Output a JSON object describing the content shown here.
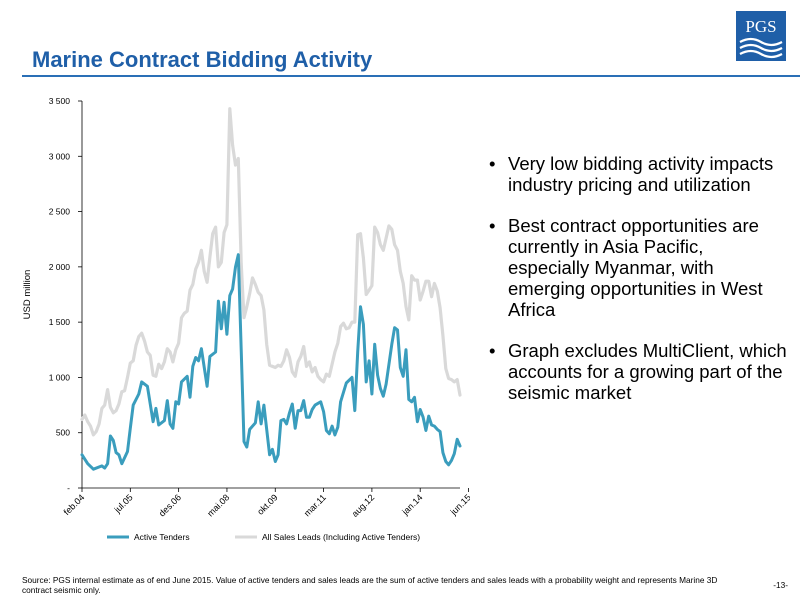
{
  "slide": {
    "title": "Marine Contract Bidding Activity",
    "accent_color": "#1f5fa8",
    "logo_text": "PGS",
    "bullets": [
      "Very low bidding activity impacts industry pricing and utilization",
      "Best contract opportunities are currently in Asia Pacific, especially Myanmar, with emerging opportunities in West Africa",
      "Graph excludes MultiClient, which accounts for a growing part of the seismic market"
    ],
    "footnote": "Source: PGS internal estimate as of end June 2015. Value of active tenders and sales leads are the sum of active tenders and sales leads with a probability weight and represents Marine 3D contract seismic only.",
    "page_number": "-13-"
  },
  "chart_data": {
    "type": "line",
    "title": "",
    "xlabel": "",
    "ylabel": "USD million",
    "ylim": [
      0,
      3500
    ],
    "yticks": [
      {
        "v": 0,
        "label": "-"
      },
      {
        "v": 500,
        "label": "500"
      },
      {
        "v": 1000,
        "label": "1 000"
      },
      {
        "v": 1500,
        "label": "1 500"
      },
      {
        "v": 2000,
        "label": "2 000"
      },
      {
        "v": 2500,
        "label": "2 500"
      },
      {
        "v": 3000,
        "label": "3 000"
      },
      {
        "v": 3500,
        "label": "3 500"
      }
    ],
    "x_start": "feb.04",
    "x_end": "jun.15",
    "x_tick_labels": [
      {
        "label": "feb.04",
        "index": 0
      },
      {
        "label": "jul.05",
        "index": 17
      },
      {
        "label": "des.06",
        "index": 34
      },
      {
        "label": "mai.08",
        "index": 51
      },
      {
        "label": "okt.09",
        "index": 68
      },
      {
        "label": "mar.11",
        "index": 85
      },
      {
        "label": "aug.12",
        "index": 102
      },
      {
        "label": "jan.14",
        "index": 119
      },
      {
        "label": "jun.15",
        "index": 136
      }
    ],
    "grid": false,
    "legend_position": "bottom",
    "series": [
      {
        "name": "Active Tenders",
        "color": "#3a9dbd",
        "points": [
          [
            0,
            300
          ],
          [
            2,
            220
          ],
          [
            4,
            170
          ],
          [
            7,
            200
          ],
          [
            8,
            180
          ],
          [
            9,
            220
          ],
          [
            10,
            470
          ],
          [
            11,
            430
          ],
          [
            12,
            320
          ],
          [
            13,
            300
          ],
          [
            14,
            220
          ],
          [
            16,
            330
          ],
          [
            17,
            540
          ],
          [
            18,
            750
          ],
          [
            20,
            850
          ],
          [
            21,
            960
          ],
          [
            23,
            920
          ],
          [
            25,
            600
          ],
          [
            26,
            720
          ],
          [
            27,
            570
          ],
          [
            29,
            610
          ],
          [
            30,
            790
          ],
          [
            31,
            580
          ],
          [
            32,
            540
          ],
          [
            33,
            780
          ],
          [
            34,
            760
          ],
          [
            35,
            960
          ],
          [
            37,
            1010
          ],
          [
            38,
            820
          ],
          [
            39,
            1100
          ],
          [
            40,
            1180
          ],
          [
            41,
            1150
          ],
          [
            42,
            1260
          ],
          [
            44,
            920
          ],
          [
            45,
            1190
          ],
          [
            47,
            1230
          ],
          [
            48,
            1690
          ],
          [
            49,
            1440
          ],
          [
            50,
            1680
          ],
          [
            51,
            1390
          ],
          [
            52,
            1740
          ],
          [
            53,
            1800
          ],
          [
            54,
            2000
          ],
          [
            55,
            2110
          ],
          [
            56,
            1250
          ],
          [
            57,
            420
          ],
          [
            58,
            370
          ],
          [
            59,
            530
          ],
          [
            61,
            590
          ],
          [
            62,
            780
          ],
          [
            63,
            580
          ],
          [
            64,
            750
          ],
          [
            65,
            530
          ],
          [
            66,
            300
          ],
          [
            67,
            350
          ],
          [
            68,
            240
          ],
          [
            69,
            300
          ],
          [
            70,
            610
          ],
          [
            71,
            620
          ],
          [
            72,
            580
          ],
          [
            73,
            680
          ],
          [
            74,
            760
          ],
          [
            75,
            540
          ],
          [
            76,
            700
          ],
          [
            77,
            700
          ],
          [
            78,
            790
          ],
          [
            79,
            640
          ],
          [
            80,
            640
          ],
          [
            81,
            710
          ],
          [
            82,
            750
          ],
          [
            84,
            780
          ],
          [
            85,
            690
          ],
          [
            86,
            520
          ],
          [
            87,
            490
          ],
          [
            88,
            560
          ],
          [
            89,
            480
          ],
          [
            90,
            550
          ],
          [
            91,
            780
          ],
          [
            93,
            950
          ],
          [
            95,
            1000
          ],
          [
            96,
            700
          ],
          [
            97,
            1230
          ],
          [
            98,
            1640
          ],
          [
            99,
            1480
          ],
          [
            100,
            960
          ],
          [
            101,
            1150
          ],
          [
            102,
            850
          ],
          [
            103,
            1300
          ],
          [
            104,
            1020
          ],
          [
            105,
            900
          ],
          [
            106,
            830
          ],
          [
            107,
            940
          ],
          [
            109,
            1300
          ],
          [
            110,
            1450
          ],
          [
            111,
            1430
          ],
          [
            112,
            1090
          ],
          [
            113,
            1010
          ],
          [
            114,
            1250
          ],
          [
            115,
            800
          ],
          [
            116,
            780
          ],
          [
            117,
            820
          ],
          [
            118,
            600
          ],
          [
            119,
            710
          ],
          [
            120,
            640
          ],
          [
            121,
            520
          ],
          [
            122,
            650
          ],
          [
            123,
            570
          ],
          [
            124,
            560
          ],
          [
            125,
            530
          ],
          [
            126,
            510
          ],
          [
            127,
            320
          ],
          [
            128,
            240
          ],
          [
            129,
            210
          ],
          [
            130,
            250
          ],
          [
            131,
            310
          ],
          [
            132,
            440
          ],
          [
            133,
            380
          ]
        ]
      },
      {
        "name": "All Sales Leads (Including Active Tenders)",
        "color": "#d9d9d9",
        "points": [
          [
            0,
            620
          ],
          [
            1,
            660
          ],
          [
            2,
            600
          ],
          [
            3,
            560
          ],
          [
            4,
            480
          ],
          [
            5,
            510
          ],
          [
            6,
            580
          ],
          [
            7,
            720
          ],
          [
            8,
            750
          ],
          [
            9,
            890
          ],
          [
            10,
            730
          ],
          [
            11,
            680
          ],
          [
            12,
            700
          ],
          [
            13,
            760
          ],
          [
            14,
            870
          ],
          [
            15,
            880
          ],
          [
            16,
            1000
          ],
          [
            17,
            1130
          ],
          [
            18,
            1150
          ],
          [
            19,
            1290
          ],
          [
            20,
            1370
          ],
          [
            21,
            1400
          ],
          [
            22,
            1330
          ],
          [
            23,
            1230
          ],
          [
            24,
            1200
          ],
          [
            25,
            1020
          ],
          [
            26,
            1010
          ],
          [
            27,
            1120
          ],
          [
            28,
            1080
          ],
          [
            29,
            1140
          ],
          [
            30,
            1260
          ],
          [
            31,
            1230
          ],
          [
            32,
            1140
          ],
          [
            33,
            1250
          ],
          [
            34,
            1310
          ],
          [
            35,
            1540
          ],
          [
            36,
            1580
          ],
          [
            37,
            1600
          ],
          [
            38,
            1790
          ],
          [
            39,
            1840
          ],
          [
            40,
            1980
          ],
          [
            41,
            2040
          ],
          [
            42,
            2150
          ],
          [
            43,
            1960
          ],
          [
            44,
            1860
          ],
          [
            45,
            2090
          ],
          [
            46,
            2300
          ],
          [
            47,
            2360
          ],
          [
            48,
            2000
          ],
          [
            49,
            2040
          ],
          [
            50,
            2310
          ],
          [
            51,
            2380
          ],
          [
            52,
            3430
          ],
          [
            53,
            3100
          ],
          [
            54,
            2920
          ],
          [
            55,
            2980
          ],
          [
            56,
            2030
          ],
          [
            57,
            1540
          ],
          [
            58,
            1640
          ],
          [
            59,
            1760
          ],
          [
            60,
            1900
          ],
          [
            61,
            1840
          ],
          [
            62,
            1770
          ],
          [
            63,
            1740
          ],
          [
            64,
            1610
          ],
          [
            65,
            1300
          ],
          [
            66,
            1110
          ],
          [
            67,
            1100
          ],
          [
            68,
            1090
          ],
          [
            69,
            1110
          ],
          [
            70,
            1100
          ],
          [
            71,
            1150
          ],
          [
            72,
            1250
          ],
          [
            73,
            1180
          ],
          [
            74,
            1050
          ],
          [
            75,
            1010
          ],
          [
            76,
            1140
          ],
          [
            77,
            1190
          ],
          [
            78,
            1280
          ],
          [
            79,
            1100
          ],
          [
            80,
            1140
          ],
          [
            81,
            1050
          ],
          [
            82,
            1090
          ],
          [
            83,
            1010
          ],
          [
            84,
            980
          ],
          [
            85,
            960
          ],
          [
            86,
            1030
          ],
          [
            87,
            1010
          ],
          [
            88,
            1120
          ],
          [
            89,
            1230
          ],
          [
            90,
            1310
          ],
          [
            91,
            1460
          ],
          [
            92,
            1490
          ],
          [
            93,
            1440
          ],
          [
            94,
            1450
          ],
          [
            95,
            1500
          ],
          [
            96,
            1500
          ],
          [
            97,
            2290
          ],
          [
            98,
            2300
          ],
          [
            99,
            2080
          ],
          [
            100,
            1750
          ],
          [
            101,
            1790
          ],
          [
            102,
            1830
          ],
          [
            103,
            2360
          ],
          [
            104,
            2310
          ],
          [
            105,
            2200
          ],
          [
            106,
            2150
          ],
          [
            107,
            2260
          ],
          [
            108,
            2370
          ],
          [
            109,
            2340
          ],
          [
            110,
            2200
          ],
          [
            111,
            2150
          ],
          [
            112,
            1960
          ],
          [
            113,
            1850
          ],
          [
            114,
            1640
          ],
          [
            115,
            1520
          ],
          [
            116,
            1920
          ],
          [
            117,
            1880
          ],
          [
            118,
            1880
          ],
          [
            119,
            1700
          ],
          [
            120,
            1780
          ],
          [
            121,
            1870
          ],
          [
            122,
            1870
          ],
          [
            123,
            1730
          ],
          [
            124,
            1850
          ],
          [
            125,
            1780
          ],
          [
            126,
            1630
          ],
          [
            127,
            1380
          ],
          [
            128,
            1080
          ],
          [
            129,
            990
          ],
          [
            130,
            980
          ],
          [
            131,
            960
          ],
          [
            132,
            980
          ],
          [
            133,
            840
          ]
        ]
      }
    ]
  }
}
